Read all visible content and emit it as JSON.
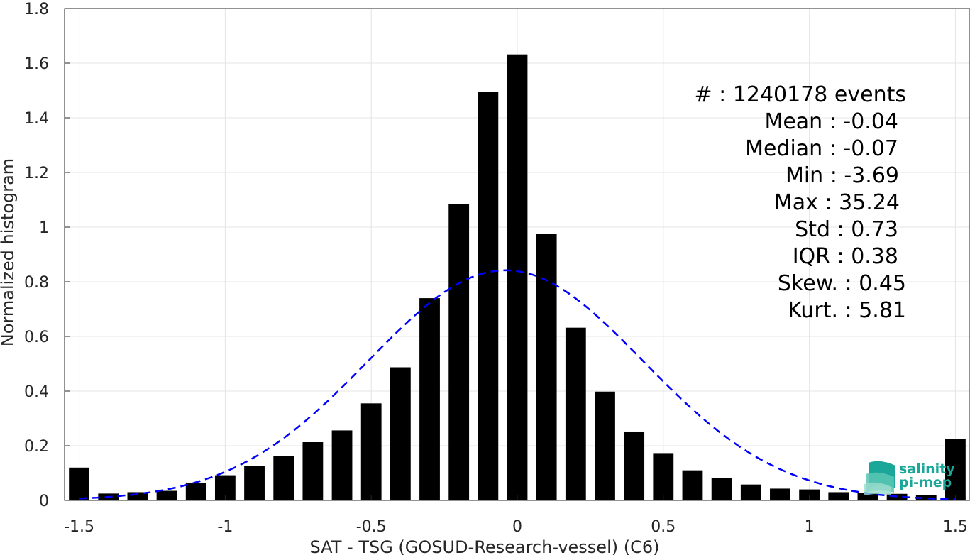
{
  "chart_data": {
    "type": "bar",
    "xlabel": "SAT - TSG (GOSUD-Research-vessel) (C6)",
    "ylabel": "Normalized histogram",
    "xlim": [
      -1.55,
      1.55
    ],
    "ylim": [
      0,
      1.8
    ],
    "grid": true,
    "x_ticks": [
      -1.5,
      -1,
      -0.5,
      0,
      0.5,
      1,
      1.5
    ],
    "x_tick_labels": [
      "-1.5",
      "-1",
      "-0.5",
      "0",
      "0.5",
      "1",
      "1.5"
    ],
    "y_ticks": [
      0,
      0.2,
      0.4,
      0.6,
      0.8,
      1,
      1.2,
      1.4,
      1.6,
      1.8
    ],
    "y_tick_labels": [
      "0",
      "0.2",
      "0.4",
      "0.6",
      "0.8",
      "1",
      "1.2",
      "1.4",
      "1.6",
      "1.8"
    ],
    "bin_centers": [
      -1.5,
      -1.4,
      -1.3,
      -1.2,
      -1.1,
      -1.0,
      -0.9,
      -0.8,
      -0.7,
      -0.6,
      -0.5,
      -0.4,
      -0.3,
      -0.2,
      -0.1,
      0.0,
      0.1,
      0.2,
      0.3,
      0.4,
      0.5,
      0.6,
      0.7,
      0.8,
      0.9,
      1.0,
      1.1,
      1.2,
      1.3,
      1.4,
      1.5
    ],
    "values": [
      0.12,
      0.025,
      0.03,
      0.035,
      0.065,
      0.092,
      0.127,
      0.163,
      0.213,
      0.256,
      0.355,
      0.487,
      0.74,
      1.085,
      1.496,
      1.632,
      0.976,
      0.632,
      0.398,
      0.252,
      0.173,
      0.11,
      0.082,
      0.058,
      0.043,
      0.04,
      0.03,
      0.028,
      0.024,
      0.02,
      0.225
    ],
    "bar_color": "#000000",
    "fit_curve": {
      "type": "gaussian",
      "mean": -0.04,
      "std": 0.47,
      "peak": 0.842,
      "color": "#0000ff",
      "style": "dashed"
    },
    "stats": [
      "#  : 1240178 events",
      "Mean : -0.04",
      "Median : -0.07",
      "Min : -3.69",
      "Max : 35.24",
      "Std : 0.73",
      "IQR : 0.38",
      "Skew. : 0.45",
      "Kurt. : 5.81"
    ]
  },
  "logo": {
    "line1": "salinity",
    "line2": "pi-mep",
    "color": "#1aa79a"
  }
}
